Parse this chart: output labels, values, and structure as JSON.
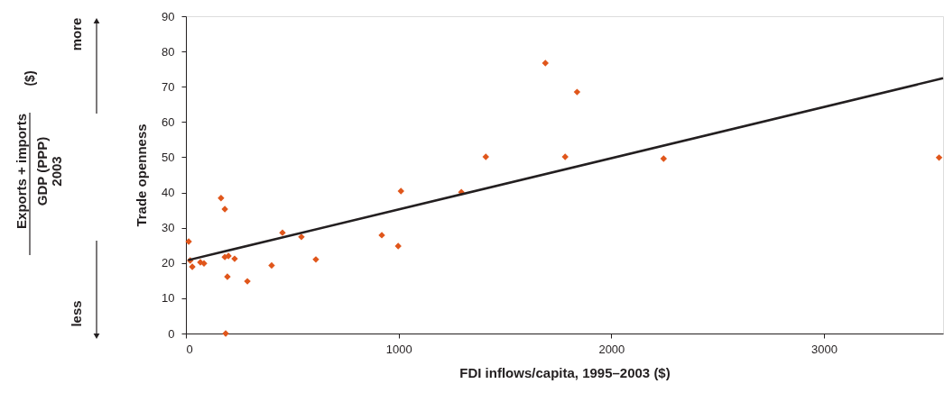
{
  "chart_data": {
    "type": "scatter",
    "xlabel": "FDI inflows/capita, 1995–2003 ($)",
    "ylabel": "Trade openness",
    "xlim": [
      0,
      3560
    ],
    "xticks": [
      0,
      1000,
      2000,
      3000
    ],
    "ylim": [
      0,
      90
    ],
    "yticks": [
      0,
      10,
      20,
      30,
      40,
      50,
      60,
      70,
      80,
      90
    ],
    "grid": false,
    "series": [
      {
        "marker": "diamond",
        "color": "#e0561b",
        "x": [
          13,
          20,
          30,
          68,
          85,
          165,
          183,
          183,
          200,
          187,
          195,
          229,
          289,
          403,
          454,
          543,
          611,
          921,
          998,
          1011,
          1295,
          1410,
          1690,
          1783,
          1839,
          2246,
          3541
        ],
        "values": [
          26.1,
          20.7,
          18.9,
          20.2,
          19.9,
          38.4,
          35.3,
          21.7,
          22,
          0,
          16.1,
          21.2,
          14.8,
          19.3,
          28.6,
          27.4,
          21,
          27.9,
          24.8,
          40.4,
          40.1,
          50.1,
          76.7,
          50.1,
          68.5,
          49.6,
          49.9
        ]
      },
      {
        "type": "line",
        "color": "#231f20",
        "x": [
          10,
          3560
        ],
        "values": [
          20.8,
          72.4
        ],
        "line_style": "solid",
        "marker": "none"
      }
    ],
    "annotations": [
      "more",
      "less",
      "Exports + imports",
      "GDP (PPP)",
      "2003",
      "($)"
    ]
  }
}
